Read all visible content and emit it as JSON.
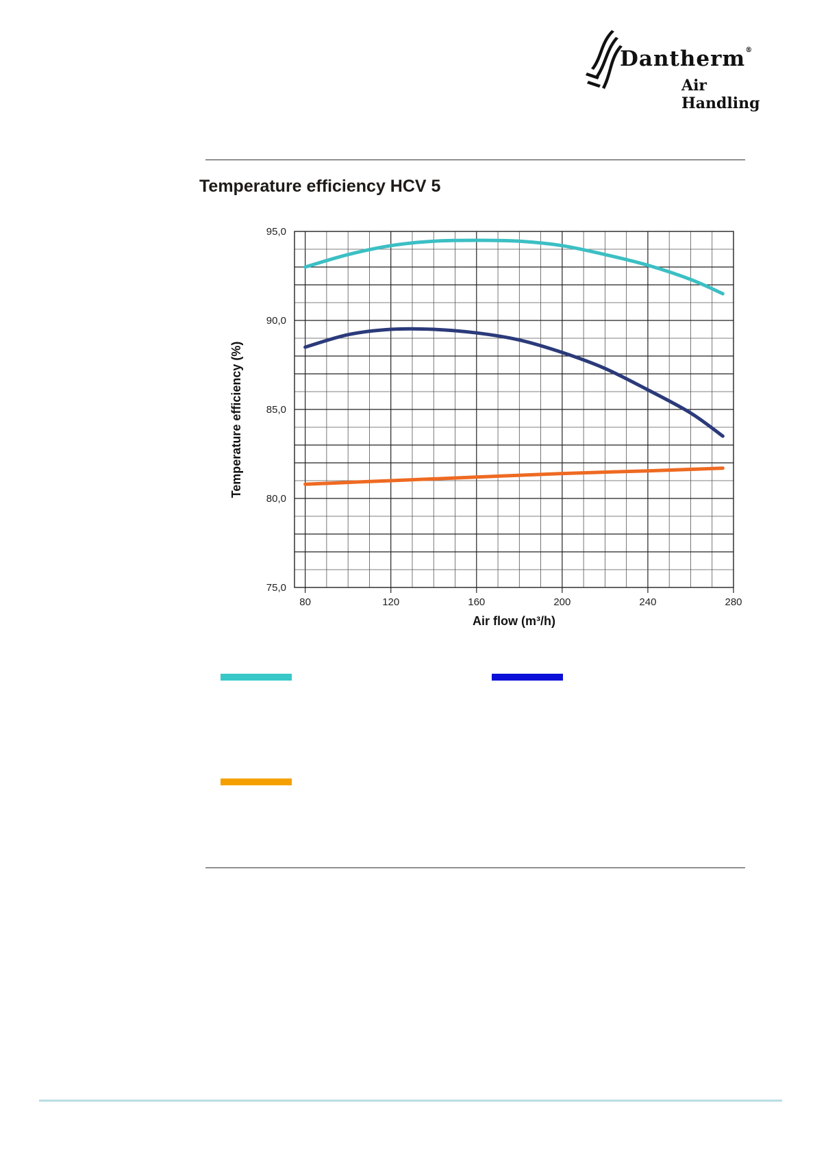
{
  "header": {
    "brand_name": "Dantherm",
    "brand_sub": "Air Handling",
    "registered_mark": "®"
  },
  "title": "Temperature efficiency HCV 5",
  "chart_data": {
    "type": "line",
    "title": "Temperature efficiency HCV 5",
    "xlabel": "Air flow (m³/h)",
    "ylabel": "Temperature efficiency (%)",
    "xlim": [
      75,
      280
    ],
    "ylim": [
      75,
      95
    ],
    "x_ticks": [
      80,
      120,
      160,
      200,
      240,
      280
    ],
    "y_ticks": [
      75,
      80,
      85,
      90,
      95
    ],
    "y_tick_labels": [
      "75,0",
      "80,0",
      "85,0",
      "90,0",
      "95,0"
    ],
    "grid": true,
    "series": [
      {
        "color": "#3bbfc4",
        "x": [
          80,
          100,
          120,
          140,
          160,
          180,
          200,
          220,
          240,
          260,
          275
        ],
        "y": [
          93.0,
          93.7,
          94.2,
          94.45,
          94.5,
          94.45,
          94.2,
          93.7,
          93.1,
          92.3,
          91.5
        ]
      },
      {
        "color": "#2b3a7a",
        "x": [
          80,
          100,
          120,
          140,
          160,
          180,
          200,
          220,
          240,
          260,
          275
        ],
        "y": [
          88.5,
          89.2,
          89.5,
          89.5,
          89.3,
          88.9,
          88.2,
          87.3,
          86.1,
          84.8,
          83.5
        ]
      },
      {
        "color": "#ee6a22",
        "x": [
          80,
          120,
          160,
          200,
          240,
          275
        ],
        "y": [
          80.8,
          81.0,
          81.2,
          81.4,
          81.55,
          81.7
        ]
      }
    ]
  },
  "legend": [
    {
      "color": "#38c8c8"
    },
    {
      "color": "#0a10d8"
    },
    {
      "color": "#f5a000"
    }
  ]
}
